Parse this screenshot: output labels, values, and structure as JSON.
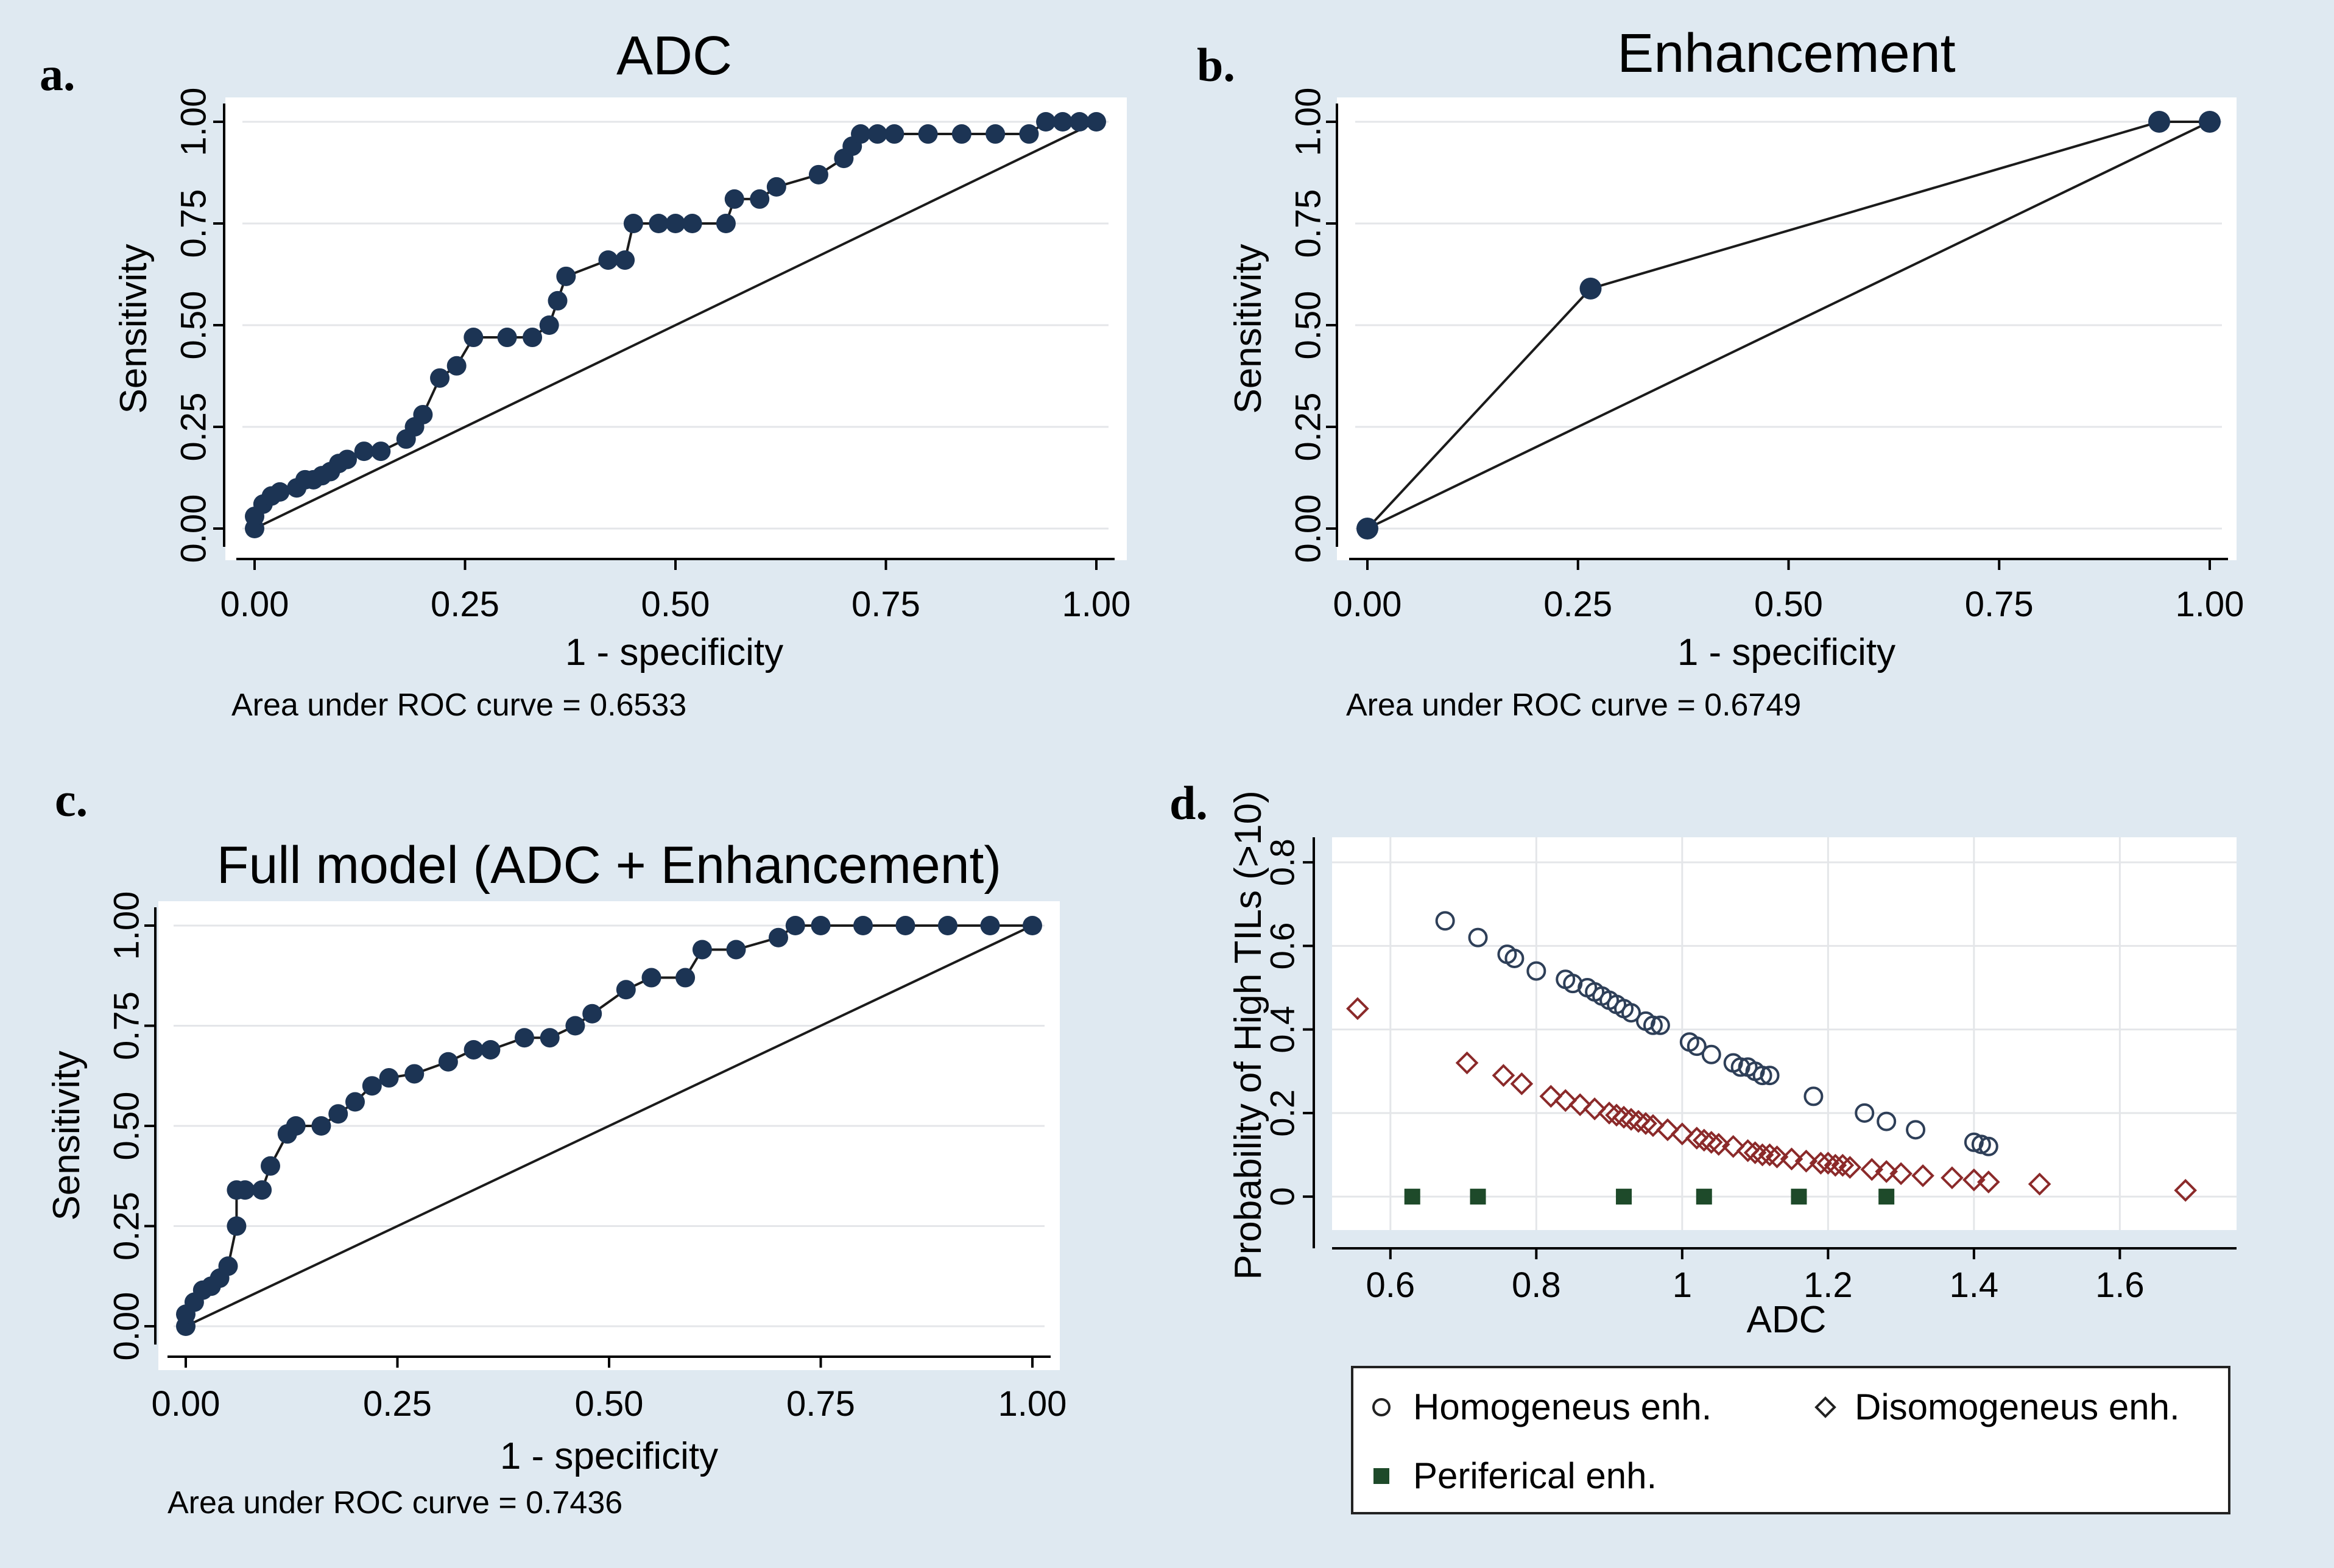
{
  "colors": {
    "figure_bg": "#dfe9f1",
    "plot_bg": "#ffffff",
    "grid": "#e4e6e9",
    "roc_line": "#1b1b1b",
    "roc_marker": "#1c3454",
    "homogeneous_marker": "#2e3f58",
    "disomogeneous_marker": "#8b2a2a",
    "periferical_marker": "#1e4a2a"
  },
  "chart_data": [
    {
      "id": "a",
      "type": "line",
      "panel_label": "a.",
      "title": "ADC",
      "xlabel": "1 - specificity",
      "ylabel": "Sensitivity",
      "xlim": [
        0,
        1
      ],
      "ylim": [
        0,
        1
      ],
      "xticks": [
        "0.00",
        "0.25",
        "0.50",
        "0.75",
        "1.00"
      ],
      "yticks": [
        "0.00",
        "0.25",
        "0.50",
        "0.75",
        "1.00"
      ],
      "grid": true,
      "auc_text": "Area under ROC curve = 0.6533",
      "reference_line": [
        [
          0,
          0
        ],
        [
          1,
          1
        ]
      ],
      "x": [
        0.0,
        0.0,
        0.01,
        0.02,
        0.03,
        0.05,
        0.06,
        0.07,
        0.08,
        0.09,
        0.1,
        0.11,
        0.13,
        0.15,
        0.18,
        0.19,
        0.2,
        0.22,
        0.24,
        0.26,
        0.3,
        0.33,
        0.35,
        0.36,
        0.37,
        0.42,
        0.44,
        0.45,
        0.48,
        0.5,
        0.52,
        0.56,
        0.57,
        0.6,
        0.62,
        0.67,
        0.7,
        0.71,
        0.72,
        0.74,
        0.76,
        0.8,
        0.84,
        0.88,
        0.92,
        0.94,
        0.96,
        0.98,
        1.0
      ],
      "y": [
        0.0,
        0.03,
        0.06,
        0.08,
        0.09,
        0.1,
        0.12,
        0.12,
        0.13,
        0.14,
        0.16,
        0.17,
        0.19,
        0.19,
        0.22,
        0.25,
        0.28,
        0.37,
        0.4,
        0.47,
        0.47,
        0.47,
        0.5,
        0.56,
        0.62,
        0.66,
        0.66,
        0.75,
        0.75,
        0.75,
        0.75,
        0.75,
        0.81,
        0.81,
        0.84,
        0.87,
        0.91,
        0.94,
        0.97,
        0.97,
        0.97,
        0.97,
        0.97,
        0.97,
        0.97,
        1.0,
        1.0,
        1.0,
        1.0
      ]
    },
    {
      "id": "b",
      "type": "line",
      "panel_label": "b.",
      "title": "Enhancement",
      "xlabel": "1 - specificity",
      "ylabel": "Sensitivity",
      "xlim": [
        0,
        1
      ],
      "ylim": [
        0,
        1
      ],
      "xticks": [
        "0.00",
        "0.25",
        "0.50",
        "0.75",
        "1.00"
      ],
      "yticks": [
        "0.00",
        "0.25",
        "0.50",
        "0.75",
        "1.00"
      ],
      "grid": true,
      "auc_text": "Area under ROC curve = 0.6749",
      "reference_line": [
        [
          0,
          0
        ],
        [
          1,
          1
        ]
      ],
      "x": [
        0.0,
        0.265,
        0.94,
        1.0
      ],
      "y": [
        0.0,
        0.59,
        1.0,
        1.0
      ]
    },
    {
      "id": "c",
      "type": "line",
      "panel_label": "c.",
      "title": "Full model (ADC + Enhancement)",
      "xlabel": "1 - specificity",
      "ylabel": "Sensitivity",
      "xlim": [
        0,
        1
      ],
      "ylim": [
        0,
        1
      ],
      "xticks": [
        "0.00",
        "0.25",
        "0.50",
        "0.75",
        "1.00"
      ],
      "yticks": [
        "0.00",
        "0.25",
        "0.50",
        "0.75",
        "1.00"
      ],
      "grid": true,
      "auc_text": "Area under ROC curve = 0.7436",
      "reference_line": [
        [
          0,
          0
        ],
        [
          1,
          1
        ]
      ],
      "x": [
        0.0,
        0.0,
        0.01,
        0.02,
        0.03,
        0.04,
        0.05,
        0.06,
        0.06,
        0.07,
        0.09,
        0.1,
        0.12,
        0.13,
        0.16,
        0.18,
        0.2,
        0.22,
        0.24,
        0.27,
        0.31,
        0.34,
        0.36,
        0.4,
        0.43,
        0.46,
        0.48,
        0.52,
        0.55,
        0.59,
        0.61,
        0.65,
        0.7,
        0.72,
        0.75,
        0.8,
        0.85,
        0.9,
        0.95,
        1.0
      ],
      "y": [
        0.0,
        0.03,
        0.06,
        0.09,
        0.1,
        0.12,
        0.15,
        0.25,
        0.34,
        0.34,
        0.34,
        0.4,
        0.48,
        0.5,
        0.5,
        0.53,
        0.56,
        0.6,
        0.62,
        0.63,
        0.66,
        0.69,
        0.69,
        0.72,
        0.72,
        0.75,
        0.78,
        0.84,
        0.87,
        0.87,
        0.94,
        0.94,
        0.97,
        1.0,
        1.0,
        1.0,
        1.0,
        1.0,
        1.0,
        1.0
      ]
    },
    {
      "id": "d",
      "type": "scatter",
      "panel_label": "d.",
      "title": "",
      "xlabel": "ADC",
      "ylabel": "Probability of High TILs (>10)",
      "xlim": [
        0.52,
        1.76
      ],
      "ylim": [
        -0.08,
        0.86
      ],
      "xticks": [
        "0.6",
        "0.8",
        "1",
        "1.2",
        "1.4",
        "1.6"
      ],
      "xtick_values": [
        0.6,
        0.8,
        1.0,
        1.2,
        1.4,
        1.6
      ],
      "yticks": [
        "0",
        "0.2",
        "0.4",
        "0.6",
        "0.8"
      ],
      "ytick_values": [
        0,
        0.2,
        0.4,
        0.6,
        0.8
      ],
      "grid": true,
      "legend_position": "bottom",
      "series": [
        {
          "name": "Homogeneus enh.",
          "marker": "circle",
          "x": [
            0.675,
            0.72,
            0.76,
            0.77,
            0.8,
            0.84,
            0.85,
            0.87,
            0.88,
            0.89,
            0.9,
            0.91,
            0.92,
            0.93,
            0.95,
            0.96,
            0.97,
            1.01,
            1.02,
            1.04,
            1.07,
            1.08,
            1.09,
            1.1,
            1.11,
            1.12,
            1.18,
            1.25,
            1.28,
            1.32,
            1.4,
            1.41,
            1.42
          ],
          "y": [
            0.66,
            0.62,
            0.58,
            0.57,
            0.54,
            0.52,
            0.51,
            0.5,
            0.49,
            0.48,
            0.47,
            0.46,
            0.45,
            0.44,
            0.42,
            0.41,
            0.41,
            0.37,
            0.36,
            0.34,
            0.32,
            0.31,
            0.31,
            0.3,
            0.29,
            0.29,
            0.24,
            0.2,
            0.18,
            0.16,
            0.13,
            0.125,
            0.12
          ]
        },
        {
          "name": "Disomogeneus enh.",
          "marker": "diamond",
          "x": [
            0.555,
            0.705,
            0.755,
            0.78,
            0.82,
            0.84,
            0.86,
            0.88,
            0.9,
            0.91,
            0.92,
            0.93,
            0.94,
            0.95,
            0.96,
            0.98,
            1.0,
            1.02,
            1.03,
            1.04,
            1.05,
            1.07,
            1.09,
            1.1,
            1.11,
            1.12,
            1.13,
            1.15,
            1.17,
            1.19,
            1.2,
            1.21,
            1.22,
            1.23,
            1.26,
            1.28,
            1.3,
            1.33,
            1.37,
            1.4,
            1.42,
            1.49,
            1.69
          ],
          "y": [
            0.45,
            0.32,
            0.29,
            0.27,
            0.24,
            0.23,
            0.22,
            0.21,
            0.2,
            0.195,
            0.19,
            0.185,
            0.18,
            0.175,
            0.17,
            0.16,
            0.15,
            0.14,
            0.135,
            0.13,
            0.125,
            0.12,
            0.11,
            0.105,
            0.1,
            0.1,
            0.095,
            0.09,
            0.085,
            0.08,
            0.08,
            0.075,
            0.075,
            0.07,
            0.065,
            0.06,
            0.055,
            0.05,
            0.045,
            0.04,
            0.035,
            0.03,
            0.015
          ]
        },
        {
          "name": "Periferical enh.",
          "marker": "square",
          "x": [
            0.63,
            0.72,
            0.92,
            1.03,
            1.16,
            1.28
          ],
          "y": [
            0,
            0,
            0,
            0,
            0,
            0
          ]
        }
      ]
    }
  ]
}
